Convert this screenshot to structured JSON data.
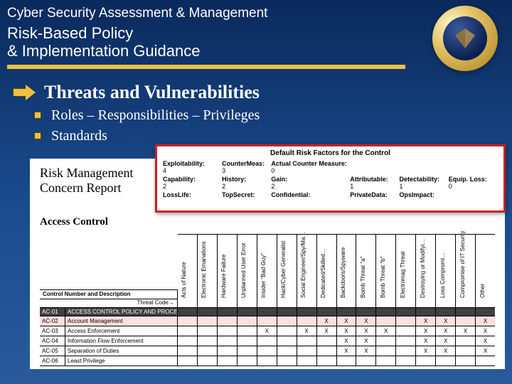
{
  "header": {
    "line1": "Cyber Security Assessment & Management",
    "line2": "Risk-Based Policy\n& Implementation Guidance",
    "underline_color": "#f0c040",
    "seal_label": "DOJ seal"
  },
  "content": {
    "heading": "Threats and Vulnerabilities",
    "bullets": [
      "Roles – Responsibilities – Privileges",
      "Standards"
    ]
  },
  "risk_factors": {
    "title": "Default Risk Factors for the Control",
    "rows": [
      [
        {
          "label": "Exploitability:",
          "value": "4"
        },
        {
          "label": "CounterMeas:",
          "value": "3"
        },
        {
          "label": "Actual Counter Measure:",
          "value": "0"
        },
        {
          "label": "",
          "value": ""
        },
        {
          "label": "",
          "value": ""
        },
        {
          "label": "",
          "value": ""
        }
      ],
      [
        {
          "label": "Capability:",
          "value": "2"
        },
        {
          "label": "History:",
          "value": "2"
        },
        {
          "label": "Gain:",
          "value": "2"
        },
        {
          "label": "Attributable:",
          "value": "1"
        },
        {
          "label": "Detectability:",
          "value": "1"
        },
        {
          "label": "Equip. Loss:",
          "value": "0"
        }
      ],
      [
        {
          "label": "LossLife:",
          "value": ""
        },
        {
          "label": "TopSecret:",
          "value": ""
        },
        {
          "label": "Confidential:",
          "value": ""
        },
        {
          "label": "PrivateData:",
          "value": ""
        },
        {
          "label": "OpsImpact:",
          "value": ""
        },
        {
          "label": "",
          "value": ""
        }
      ]
    ]
  },
  "report": {
    "title": "Risk Management\nConcern Report",
    "section": "Access Control",
    "control_col_header": "Control Number and Description",
    "threat_code_label": "Threat Code→",
    "threats": [
      "Acts of Nature",
      "Electronic Emanations",
      "Hardware Failure",
      "Unplanned User Error",
      "Insider \"Bad Guy\"",
      "Hack/Cyber Generalist",
      "Social Engineer/Spy/Ma…",
      "Dedicated/Skilled…",
      "Backdoors/Spyware",
      "Bomb Threat \"a\"",
      "Bomb Threat \"b\"",
      "Electromag Threat",
      "Destroying or Modifyi…",
      "Loss Compromi…",
      "Compromise of IT Security",
      "Other"
    ],
    "controls": [
      {
        "id": "AC-01",
        "desc": "ACCESS CONTROL POLICY AND PROCEDURES",
        "dark": true,
        "hl": false,
        "marks": []
      },
      {
        "id": "AC-02",
        "desc": "Account Management",
        "dark": false,
        "hl": true,
        "marks": [
          7,
          8,
          9,
          12,
          13,
          15
        ]
      },
      {
        "id": "AC-03",
        "desc": "Access Enforcement",
        "dark": false,
        "hl": false,
        "marks": [
          4,
          6,
          7,
          8,
          9,
          10,
          12,
          13,
          14,
          15
        ]
      },
      {
        "id": "AC-04",
        "desc": "Information Flow Enforcement",
        "dark": false,
        "hl": false,
        "marks": [
          8,
          9,
          12,
          13,
          15
        ]
      },
      {
        "id": "AC-05",
        "desc": "Separation of Duties",
        "dark": false,
        "hl": false,
        "marks": [
          8,
          9,
          12,
          13,
          15
        ]
      },
      {
        "id": "AC-06",
        "desc": "Least Privilege",
        "dark": false,
        "hl": false,
        "marks": []
      }
    ]
  },
  "colors": {
    "background_top": "#0a2a5c",
    "background_bottom": "#2a5a9c",
    "accent": "#f0c040",
    "risk_box_border": "#cc2020",
    "highlight_row": "#ffe0e0",
    "dark_row": "#404040"
  }
}
